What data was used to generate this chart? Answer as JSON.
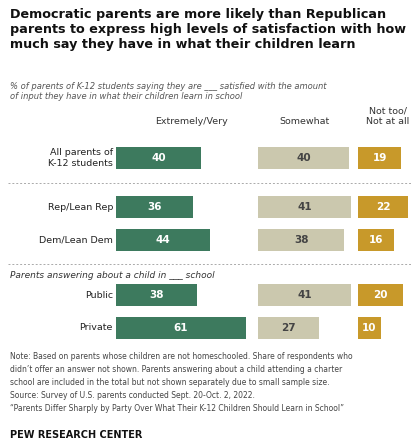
{
  "title": "Democratic parents are more likely than Republican\nparents to express high levels of satisfaction with how\nmuch say they have in what their children learn",
  "subtitle": "% of parents of K-12 students saying they are ___ satisfied with the amount\nof input they have in what their children learn in school",
  "rows": [
    {
      "label": "All parents of\nK-12 students",
      "extremely": 40,
      "somewhat": 40,
      "not": 19,
      "two_line": true
    },
    {
      "label": "Rep/Lean Rep",
      "extremely": 36,
      "somewhat": 41,
      "not": 22,
      "two_line": false
    },
    {
      "label": "Dem/Lean Dem",
      "extremely": 44,
      "somewhat": 38,
      "not": 16,
      "two_line": false
    },
    {
      "label": "Public",
      "extremely": 38,
      "somewhat": 41,
      "not": 20,
      "two_line": false
    },
    {
      "label": "Private",
      "extremely": 61,
      "somewhat": 27,
      "not": 10,
      "two_line": false
    }
  ],
  "col_headers": [
    "Extremely/Very",
    "Somewhat",
    "Not too/\nNot at all"
  ],
  "colors": {
    "extremely": "#3d7a5e",
    "somewhat": "#cbc8ae",
    "not": "#c8992a"
  },
  "note_lines": [
    "Note: Based on parents whose children are not homeschooled. Share of respondents who",
    "didn’t offer an answer not shown. Parents answering about a child attending a charter",
    "school are included in the total but not shown separately due to small sample size.",
    "Source: Survey of U.S. parents conducted Sept. 20-Oct. 2, 2022.",
    "“Parents Differ Sharply by Party Over What Their K-12 Children Should Learn in School”"
  ],
  "pew_label": "PEW RESEARCH CENTER",
  "section_header": "Parents answering about a child in ___ school",
  "bg_color": "#ffffff",
  "text_color": "#222222",
  "note_color": "#444444"
}
